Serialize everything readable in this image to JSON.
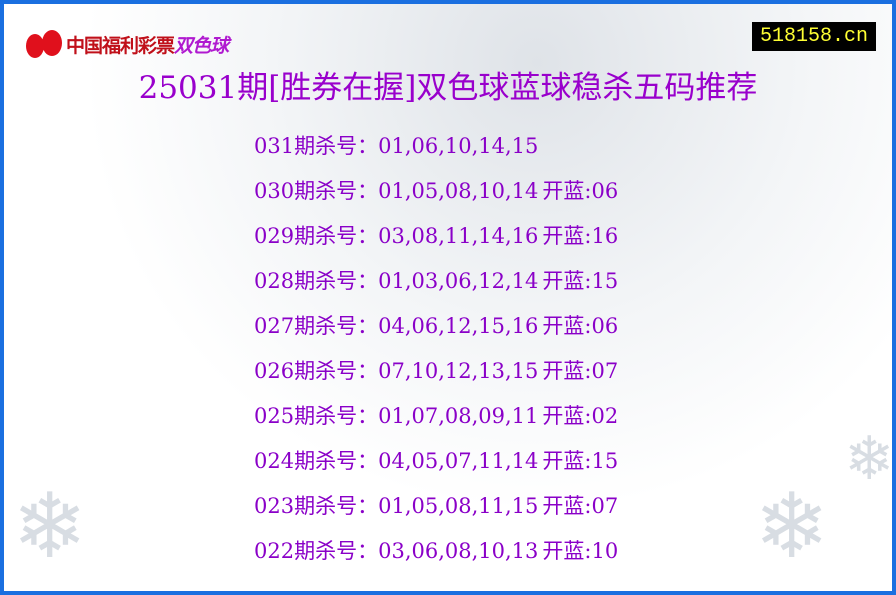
{
  "logo": {
    "brand_text": "中国福利彩票",
    "game_text": "双色球"
  },
  "site_badge": "518158.cn",
  "title": "25031期[胜券在握]双色球蓝球稳杀五码推荐",
  "rows": [
    {
      "period": "031期杀号：",
      "numbers": "01,06,10,14,15",
      "result": ""
    },
    {
      "period": "030期杀号：",
      "numbers": "01,05,08,10,14",
      "result": "开蓝:06"
    },
    {
      "period": "029期杀号：",
      "numbers": "03,08,11,14,16",
      "result": "开蓝:16"
    },
    {
      "period": "028期杀号：",
      "numbers": "01,03,06,12,14",
      "result": "开蓝:15"
    },
    {
      "period": "027期杀号：",
      "numbers": "04,06,12,15,16",
      "result": "开蓝:06"
    },
    {
      "period": "026期杀号：",
      "numbers": "07,10,12,13,15",
      "result": "开蓝:07"
    },
    {
      "period": "025期杀号：",
      "numbers": "01,07,08,09,11",
      "result": "开蓝:02"
    },
    {
      "period": "024期杀号：",
      "numbers": "04,05,07,11,14",
      "result": "开蓝:15"
    },
    {
      "period": "023期杀号：",
      "numbers": "01,05,08,11,15",
      "result": "开蓝:07"
    },
    {
      "period": "022期杀号：",
      "numbers": "03,06,08,10,13",
      "result": "开蓝:10"
    }
  ],
  "colors": {
    "border": "#1a6fe0",
    "text": "#8a00c8",
    "title": "#9900cc",
    "badge_bg": "#000000",
    "badge_text": "#ffff33"
  }
}
